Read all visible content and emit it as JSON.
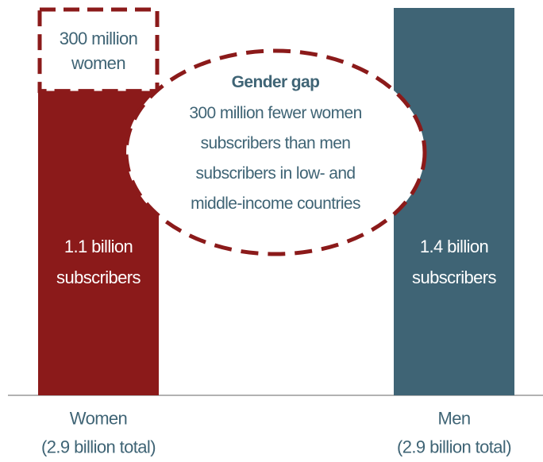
{
  "chart_data": {
    "type": "bar",
    "categories": [
      "Women",
      "Men"
    ],
    "category_notes": [
      "(2.9 billion total)",
      "(2.9 billion total)"
    ],
    "values": [
      1.1,
      1.4
    ],
    "value_labels": [
      "1.1 billion subscribers",
      "1.4 billion subscribers"
    ],
    "colors": [
      "#8b1a1a",
      "#3f6475"
    ],
    "gap": {
      "category": 0,
      "value": 0.3,
      "label": "300 million women",
      "color": "#8b1a1a"
    },
    "annotation": {
      "title": "Gender gap",
      "lines": [
        "300 million fewer women",
        "subscribers than men",
        "subscribers in low- and",
        "middle-income countries"
      ]
    }
  }
}
